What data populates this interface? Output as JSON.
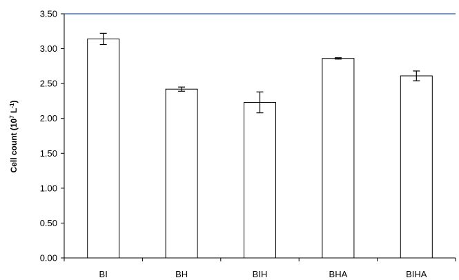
{
  "chart_data": {
    "type": "bar",
    "categories": [
      "BI",
      "BH",
      "BIH",
      "BHA",
      "BIHA"
    ],
    "values": [
      3.14,
      2.42,
      2.23,
      2.86,
      2.61
    ],
    "errors": [
      0.08,
      0.03,
      0.15,
      0.01,
      0.07
    ],
    "ylabel_main": "Cell count (10",
    "ylabel_sup1": "7",
    "ylabel_mid": " L",
    "ylabel_sup2": "-1",
    "ylabel_end": ")",
    "ylim": [
      0,
      3.5
    ],
    "yticks": [
      "0.00",
      "0.50",
      "1.00",
      "1.50",
      "2.00",
      "2.50",
      "3.00",
      "3.50"
    ],
    "grid": false,
    "bar_fill": "#ffffff",
    "bar_stroke": "#000000",
    "top_line_color": "#4472c4"
  }
}
